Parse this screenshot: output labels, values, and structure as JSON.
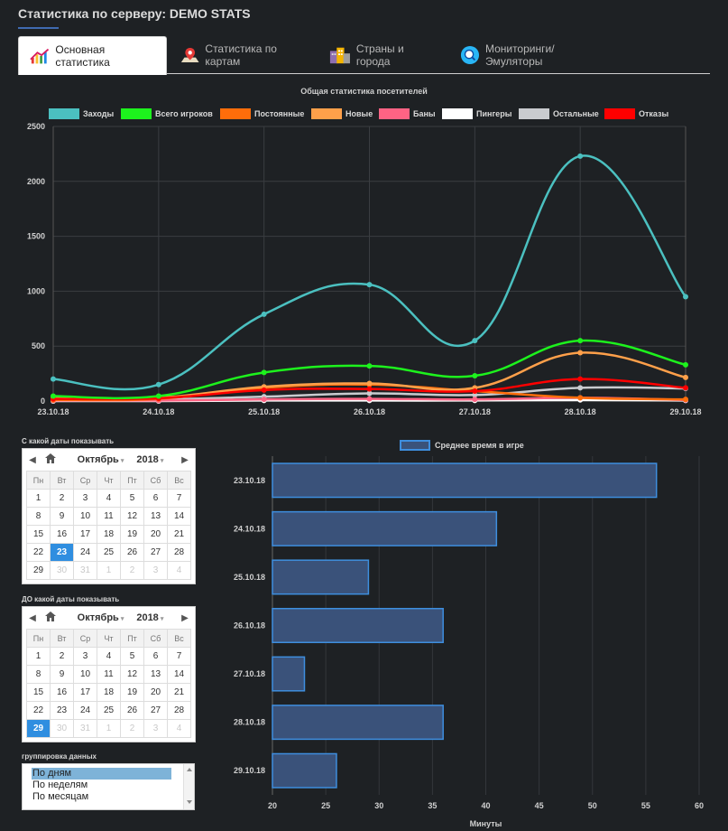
{
  "header": {
    "title": "Статистика по серверу: DEMO STATS"
  },
  "tabs": [
    {
      "label": "Основная статистика",
      "icon": "bar-chart-icon",
      "active": true
    },
    {
      "label": "Статистика по картам",
      "icon": "map-pin-icon",
      "active": false
    },
    {
      "label": "Страны и города",
      "icon": "buildings-icon",
      "active": false
    },
    {
      "label": "Мониторинги/Эмуляторы",
      "icon": "monitor-search-icon",
      "active": false
    }
  ],
  "chart_data": [
    {
      "type": "line",
      "title": "Общая статистика посетителей",
      "categories": [
        "23.10.18",
        "24.10.18",
        "25.10.18",
        "26.10.18",
        "27.10.18",
        "28.10.18",
        "29.10.18"
      ],
      "ylim": [
        0,
        2500
      ],
      "yticks": [
        0,
        500,
        1000,
        1500,
        2000,
        2500
      ],
      "series": [
        {
          "name": "Заходы",
          "color": "#4bc0c0",
          "values": [
            200,
            150,
            790,
            1060,
            550,
            2230,
            950
          ]
        },
        {
          "name": "Всего игроков",
          "color": "#1df21d",
          "values": [
            45,
            45,
            260,
            320,
            230,
            550,
            330
          ]
        },
        {
          "name": "Постоянные",
          "color": "#ff6d0a",
          "values": [
            10,
            20,
            120,
            150,
            90,
            30,
            15
          ]
        },
        {
          "name": "Новые",
          "color": "#ffa04a",
          "values": [
            30,
            30,
            130,
            160,
            120,
            440,
            215
          ]
        },
        {
          "name": "Баны",
          "color": "#ff6384",
          "values": [
            5,
            5,
            15,
            20,
            15,
            30,
            10
          ]
        },
        {
          "name": "Пингеры",
          "color": "#ffffff",
          "values": [
            0,
            0,
            5,
            5,
            5,
            10,
            5
          ]
        },
        {
          "name": "Остальные",
          "color": "#c9cbcf",
          "values": [
            15,
            15,
            40,
            70,
            55,
            120,
            115
          ]
        },
        {
          "name": "Отказы",
          "color": "#ff0000",
          "values": [
            20,
            25,
            100,
            110,
            90,
            200,
            120
          ]
        }
      ]
    },
    {
      "type": "bar",
      "orientation": "horizontal",
      "legend": "Среднее время в игре",
      "xlabel": "Минуты",
      "categories": [
        "23.10.18",
        "24.10.18",
        "25.10.18",
        "26.10.18",
        "27.10.18",
        "28.10.18",
        "29.10.18"
      ],
      "values": [
        56,
        41,
        29,
        36,
        23,
        36,
        26
      ],
      "xlim": [
        20,
        60
      ],
      "xticks": [
        20,
        25,
        30,
        35,
        40,
        45,
        50,
        55,
        60
      ]
    }
  ],
  "from_label": "С какой даты показывать",
  "to_label": "ДО какой даты показывать",
  "calendars": [
    {
      "month": "Октябрь",
      "year": "2018",
      "selected": "23"
    },
    {
      "month": "Октябрь",
      "year": "2018",
      "selected": "29"
    }
  ],
  "weekdays": [
    "Пн",
    "Вт",
    "Ср",
    "Чт",
    "Пт",
    "Сб",
    "Вс"
  ],
  "days": [
    [
      "1",
      "2",
      "3",
      "4",
      "5",
      "6",
      "7"
    ],
    [
      "8",
      "9",
      "10",
      "11",
      "12",
      "13",
      "14"
    ],
    [
      "15",
      "16",
      "17",
      "18",
      "19",
      "20",
      "21"
    ],
    [
      "22",
      "23",
      "24",
      "25",
      "26",
      "27",
      "28"
    ],
    [
      "29",
      "30",
      "31",
      "1",
      "2",
      "3",
      "4"
    ]
  ],
  "grouping": {
    "label": "группировка данных",
    "options": [
      "По дням",
      "По неделям",
      "По месяцам"
    ],
    "selected": "По дням"
  }
}
